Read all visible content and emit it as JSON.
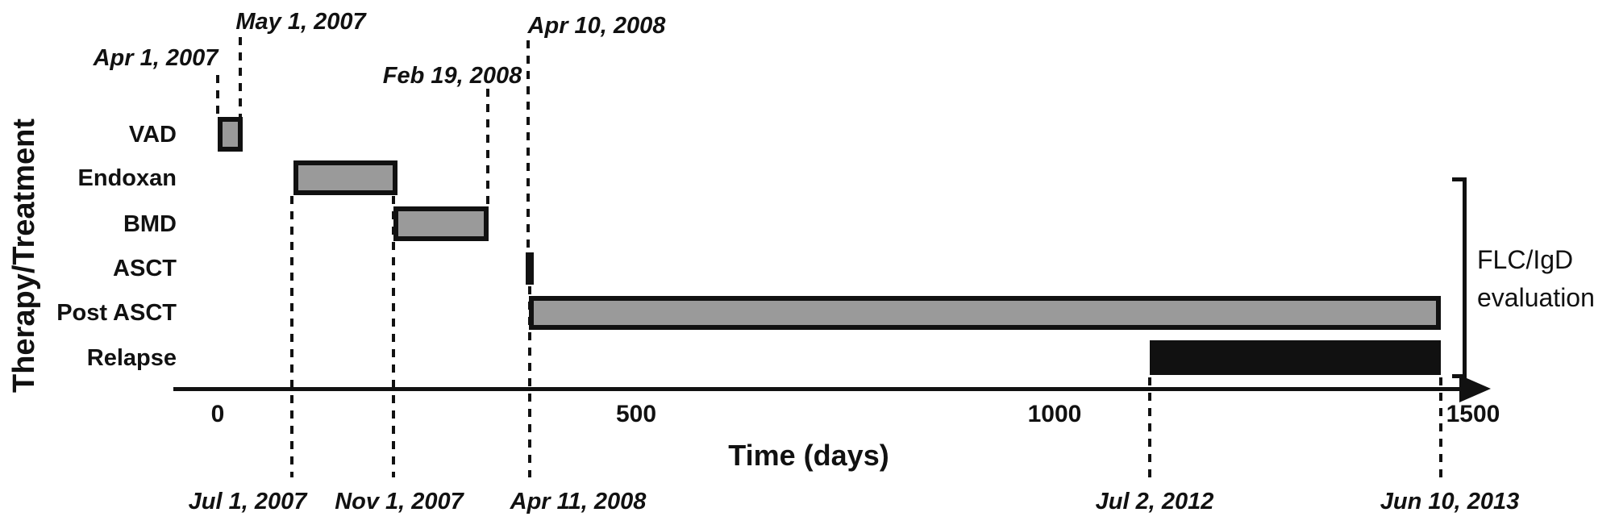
{
  "figure": {
    "background": "#ffffff",
    "text_color": "#111111",
    "bar_gray_fill": "#9a9a9a",
    "bar_border_black": "#111111"
  },
  "chart_data": {
    "type": "gantt",
    "title": "",
    "xlabel": "Time (days)",
    "ylabel": "Therapy/Treatment",
    "x_ticks": [
      0,
      500,
      1000,
      1500
    ],
    "xlim": [
      0,
      1520
    ],
    "grid": false,
    "legend": "none",
    "rows": [
      {
        "label": "VAD",
        "start_day": 0,
        "end_day": 30,
        "fill": "gray"
      },
      {
        "label": "Endoxan",
        "start_day": 91,
        "end_day": 215,
        "fill": "gray"
      },
      {
        "label": "BMD",
        "start_day": 210,
        "end_day": 324,
        "fill": "gray"
      },
      {
        "label": "ASCT",
        "start_day": 368,
        "end_day": 378,
        "fill": "black"
      },
      {
        "label": "Post ASCT",
        "start_day": 372,
        "end_day": 1461,
        "fill": "gray"
      },
      {
        "label": "Relapse",
        "start_day": 1114,
        "end_day": 1461,
        "fill": "black"
      }
    ],
    "annotations_top": [
      {
        "label": "Apr 1, 2007",
        "day": 0
      },
      {
        "label": "May 1, 2007",
        "day": 27
      },
      {
        "label": "Feb 19, 2008",
        "day": 323
      },
      {
        "label": "Apr 10, 2008",
        "day": 371
      }
    ],
    "annotations_bottom": [
      {
        "label": "Jul 1, 2007",
        "day": 89
      },
      {
        "label": "Nov 1, 2007",
        "day": 210
      },
      {
        "label": "Apr 11, 2008",
        "day": 373
      },
      {
        "label": "Jul 2, 2012",
        "day": 1114
      },
      {
        "label": "Jun 10, 2013",
        "day": 1461
      }
    ],
    "side_bracket_label_line1": "FLC/IgD",
    "side_bracket_label_line2": "evaluation"
  }
}
